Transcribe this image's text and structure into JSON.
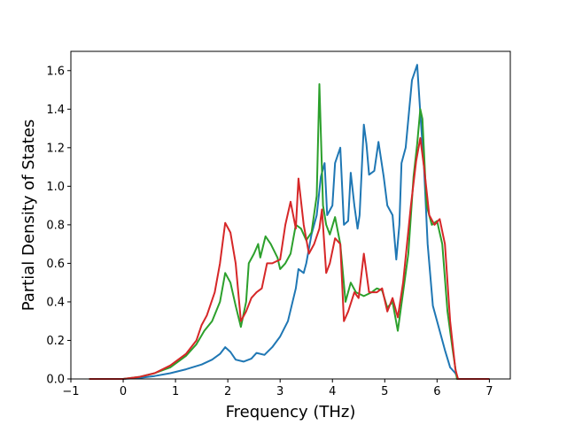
{
  "chart_data": {
    "type": "line",
    "title": "",
    "xlabel": "Frequency (THz)",
    "ylabel": "Partial Density of States",
    "xlim": [
      -1,
      7.4
    ],
    "ylim": [
      0,
      1.7
    ],
    "xticks": [
      -1,
      0,
      1,
      2,
      3,
      4,
      5,
      6,
      7
    ],
    "yticks": [
      0.0,
      0.2,
      0.4,
      0.6,
      0.8,
      1.0,
      1.2,
      1.4,
      1.6
    ],
    "xtick_labels": [
      "−1",
      "0",
      "1",
      "2",
      "3",
      "4",
      "5",
      "6",
      "7"
    ],
    "ytick_labels": [
      "0.0",
      "0.2",
      "0.4",
      "0.6",
      "0.8",
      "1.0",
      "1.2",
      "1.4",
      "1.6"
    ],
    "grid": false,
    "legend": "none",
    "series": [
      {
        "color": "#1f77b4",
        "points": [
          [
            -0.65,
            0
          ],
          [
            0,
            0
          ],
          [
            0.3,
            0.005
          ],
          [
            0.6,
            0.015
          ],
          [
            0.9,
            0.03
          ],
          [
            1.2,
            0.05
          ],
          [
            1.5,
            0.075
          ],
          [
            1.7,
            0.1
          ],
          [
            1.85,
            0.13
          ],
          [
            1.95,
            0.165
          ],
          [
            2.05,
            0.14
          ],
          [
            2.15,
            0.1
          ],
          [
            2.3,
            0.09
          ],
          [
            2.45,
            0.105
          ],
          [
            2.55,
            0.135
          ],
          [
            2.7,
            0.125
          ],
          [
            2.85,
            0.165
          ],
          [
            3.0,
            0.22
          ],
          [
            3.15,
            0.3
          ],
          [
            3.3,
            0.47
          ],
          [
            3.35,
            0.57
          ],
          [
            3.45,
            0.55
          ],
          [
            3.5,
            0.6
          ],
          [
            3.6,
            0.75
          ],
          [
            3.7,
            0.85
          ],
          [
            3.78,
            1.05
          ],
          [
            3.85,
            1.12
          ],
          [
            3.9,
            0.85
          ],
          [
            4.0,
            0.9
          ],
          [
            4.05,
            1.12
          ],
          [
            4.15,
            1.2
          ],
          [
            4.22,
            0.8
          ],
          [
            4.3,
            0.82
          ],
          [
            4.35,
            1.07
          ],
          [
            4.42,
            0.9
          ],
          [
            4.48,
            0.78
          ],
          [
            4.52,
            0.85
          ],
          [
            4.6,
            1.32
          ],
          [
            4.65,
            1.22
          ],
          [
            4.7,
            1.06
          ],
          [
            4.8,
            1.08
          ],
          [
            4.88,
            1.23
          ],
          [
            4.98,
            1.05
          ],
          [
            5.05,
            0.9
          ],
          [
            5.15,
            0.85
          ],
          [
            5.22,
            0.62
          ],
          [
            5.28,
            0.8
          ],
          [
            5.32,
            1.12
          ],
          [
            5.4,
            1.2
          ],
          [
            5.52,
            1.55
          ],
          [
            5.62,
            1.63
          ],
          [
            5.68,
            1.38
          ],
          [
            5.75,
            1.1
          ],
          [
            5.82,
            0.7
          ],
          [
            5.92,
            0.38
          ],
          [
            6.05,
            0.25
          ],
          [
            6.15,
            0.15
          ],
          [
            6.25,
            0.06
          ],
          [
            6.35,
            0.03
          ],
          [
            6.4,
            0
          ],
          [
            7.0,
            0
          ]
        ]
      },
      {
        "color": "#2ca02c",
        "points": [
          [
            -0.65,
            0
          ],
          [
            0,
            0
          ],
          [
            0.3,
            0.01
          ],
          [
            0.6,
            0.03
          ],
          [
            0.9,
            0.06
          ],
          [
            1.2,
            0.12
          ],
          [
            1.4,
            0.18
          ],
          [
            1.55,
            0.25
          ],
          [
            1.7,
            0.3
          ],
          [
            1.85,
            0.4
          ],
          [
            1.95,
            0.55
          ],
          [
            2.05,
            0.5
          ],
          [
            2.15,
            0.38
          ],
          [
            2.25,
            0.27
          ],
          [
            2.35,
            0.4
          ],
          [
            2.4,
            0.6
          ],
          [
            2.5,
            0.65
          ],
          [
            2.58,
            0.7
          ],
          [
            2.62,
            0.63
          ],
          [
            2.72,
            0.74
          ],
          [
            2.82,
            0.7
          ],
          [
            2.95,
            0.63
          ],
          [
            3.0,
            0.57
          ],
          [
            3.1,
            0.6
          ],
          [
            3.2,
            0.65
          ],
          [
            3.3,
            0.8
          ],
          [
            3.4,
            0.78
          ],
          [
            3.5,
            0.72
          ],
          [
            3.6,
            0.76
          ],
          [
            3.7,
            0.95
          ],
          [
            3.75,
            1.53
          ],
          [
            3.82,
            0.9
          ],
          [
            3.88,
            0.8
          ],
          [
            3.95,
            0.75
          ],
          [
            4.05,
            0.84
          ],
          [
            4.15,
            0.7
          ],
          [
            4.25,
            0.4
          ],
          [
            4.35,
            0.5
          ],
          [
            4.45,
            0.45
          ],
          [
            4.6,
            0.43
          ],
          [
            4.75,
            0.45
          ],
          [
            4.85,
            0.47
          ],
          [
            4.95,
            0.46
          ],
          [
            5.05,
            0.37
          ],
          [
            5.15,
            0.4
          ],
          [
            5.25,
            0.25
          ],
          [
            5.35,
            0.45
          ],
          [
            5.45,
            0.65
          ],
          [
            5.55,
            1.05
          ],
          [
            5.62,
            1.22
          ],
          [
            5.68,
            1.4
          ],
          [
            5.72,
            1.35
          ],
          [
            5.8,
            0.9
          ],
          [
            5.9,
            0.8
          ],
          [
            6.0,
            0.82
          ],
          [
            6.1,
            0.7
          ],
          [
            6.2,
            0.35
          ],
          [
            6.3,
            0.15
          ],
          [
            6.38,
            0
          ],
          [
            7.0,
            0
          ]
        ]
      },
      {
        "color": "#d62728",
        "points": [
          [
            -0.65,
            0
          ],
          [
            0,
            0
          ],
          [
            0.3,
            0.01
          ],
          [
            0.6,
            0.03
          ],
          [
            0.9,
            0.07
          ],
          [
            1.2,
            0.13
          ],
          [
            1.4,
            0.2
          ],
          [
            1.5,
            0.28
          ],
          [
            1.6,
            0.33
          ],
          [
            1.75,
            0.45
          ],
          [
            1.85,
            0.6
          ],
          [
            1.95,
            0.81
          ],
          [
            2.05,
            0.76
          ],
          [
            2.15,
            0.6
          ],
          [
            2.25,
            0.3
          ],
          [
            2.35,
            0.35
          ],
          [
            2.45,
            0.42
          ],
          [
            2.55,
            0.45
          ],
          [
            2.65,
            0.47
          ],
          [
            2.75,
            0.6
          ],
          [
            2.85,
            0.6
          ],
          [
            3.0,
            0.62
          ],
          [
            3.1,
            0.8
          ],
          [
            3.2,
            0.92
          ],
          [
            3.3,
            0.78
          ],
          [
            3.35,
            1.04
          ],
          [
            3.45,
            0.8
          ],
          [
            3.55,
            0.65
          ],
          [
            3.65,
            0.7
          ],
          [
            3.75,
            0.78
          ],
          [
            3.8,
            0.88
          ],
          [
            3.88,
            0.55
          ],
          [
            3.95,
            0.6
          ],
          [
            4.05,
            0.73
          ],
          [
            4.15,
            0.7
          ],
          [
            4.22,
            0.3
          ],
          [
            4.3,
            0.35
          ],
          [
            4.42,
            0.45
          ],
          [
            4.5,
            0.42
          ],
          [
            4.6,
            0.65
          ],
          [
            4.7,
            0.45
          ],
          [
            4.85,
            0.45
          ],
          [
            4.95,
            0.47
          ],
          [
            5.05,
            0.35
          ],
          [
            5.15,
            0.42
          ],
          [
            5.25,
            0.32
          ],
          [
            5.35,
            0.5
          ],
          [
            5.5,
            0.9
          ],
          [
            5.6,
            1.13
          ],
          [
            5.68,
            1.25
          ],
          [
            5.75,
            1.1
          ],
          [
            5.85,
            0.85
          ],
          [
            5.95,
            0.8
          ],
          [
            6.05,
            0.83
          ],
          [
            6.15,
            0.7
          ],
          [
            6.25,
            0.3
          ],
          [
            6.35,
            0.05
          ],
          [
            6.4,
            0
          ],
          [
            7.0,
            0
          ]
        ]
      }
    ]
  }
}
